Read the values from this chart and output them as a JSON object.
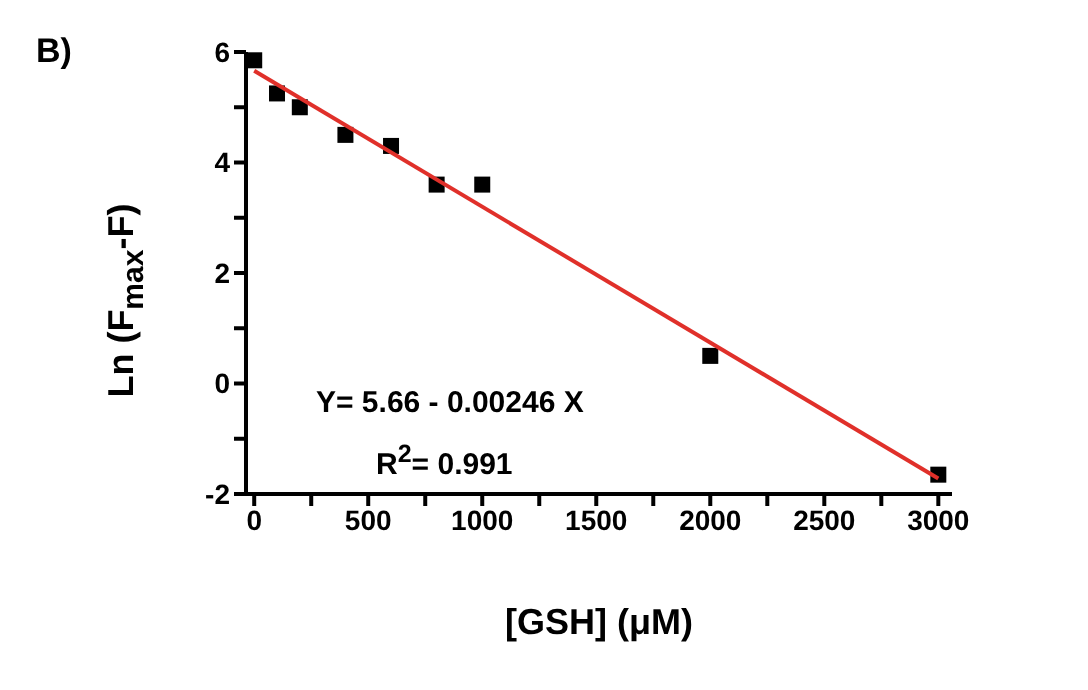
{
  "chart_data": {
    "type": "scatter",
    "xlabel": "[GSH] (μM)",
    "ylabel": "Ln (F$_{max}$-F)",
    "annotations": [
      "B)",
      "Y= 5.66 - 0.00246 X",
      "R$^{2}$= 0.991"
    ],
    "x": [
      0,
      100,
      200,
      400,
      600,
      800,
      1000,
      2000,
      3000
    ],
    "series": [
      {
        "color": "#000000",
        "marker": "square",
        "values": [
          5.85,
          5.25,
          5.0,
          4.5,
          4.3,
          3.6,
          3.6,
          0.5,
          -1.65
        ]
      },
      {
        "type": "line",
        "color": "#e0302a",
        "marker": "none",
        "x": [
          0,
          3000
        ],
        "values": [
          5.66,
          -1.72
        ],
        "line_style": "solid"
      }
    ],
    "grid": false,
    "legend": false,
    "xlim": [
      -36,
      3060
    ],
    "xticks": [
      0,
      {
        "value": 250,
        "label": null
      },
      500,
      {
        "value": 750,
        "label": null
      },
      1000,
      {
        "value": 1250,
        "label": null
      },
      1500,
      {
        "value": 1750,
        "label": null
      },
      2000,
      {
        "value": 2250,
        "label": null
      },
      2500,
      {
        "value": 2750,
        "label": null
      },
      3000
    ],
    "ylim": [
      -2,
      6
    ],
    "yticks": [
      -2,
      {
        "value": -1,
        "label": null
      },
      0,
      {
        "value": 1,
        "label": null
      },
      2,
      {
        "value": 3,
        "label": null
      },
      4,
      {
        "value": 5,
        "label": null
      },
      6
    ]
  }
}
